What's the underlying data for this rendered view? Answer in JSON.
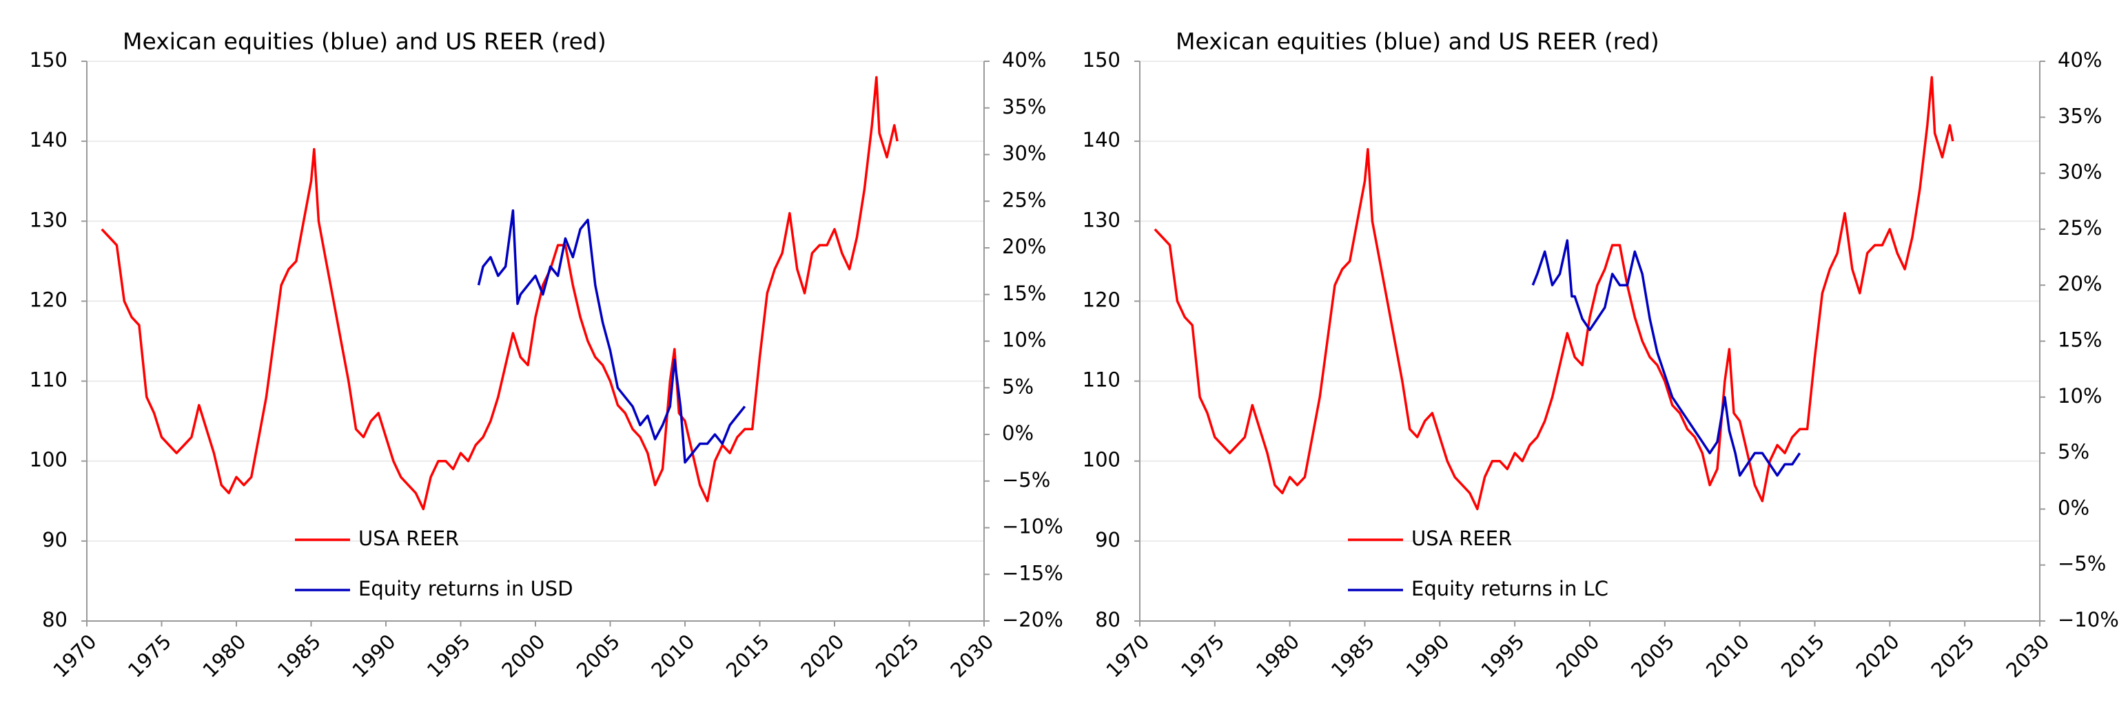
{
  "chart_data": [
    {
      "type": "line",
      "title": "Mexican equities (blue) and US REER (red)",
      "xlim": [
        1970,
        2030
      ],
      "xticks": [
        1970,
        1975,
        1980,
        1985,
        1990,
        1995,
        2000,
        2005,
        2010,
        2015,
        2020,
        2025,
        2030
      ],
      "ylim": [
        80,
        150
      ],
      "yticks": [
        80,
        90,
        100,
        110,
        120,
        130,
        140,
        150
      ],
      "y2lim": [
        -20,
        40
      ],
      "y2ticks": [
        {
          "value": -20,
          "label": "−20%"
        },
        {
          "value": -15,
          "label": "−15%"
        },
        {
          "value": -10,
          "label": "−10%"
        },
        {
          "value": -5,
          "label": "−5%"
        },
        {
          "value": 0,
          "label": "0%"
        },
        {
          "value": 5,
          "label": "5%"
        },
        {
          "value": 10,
          "label": "10%"
        },
        {
          "value": 15,
          "label": "15%"
        },
        {
          "value": 20,
          "label": "20%"
        },
        {
          "value": 25,
          "label": "25%"
        },
        {
          "value": 30,
          "label": "30%"
        },
        {
          "value": 35,
          "label": "35%"
        },
        {
          "value": 40,
          "label": "40%"
        }
      ],
      "grid": true,
      "series": [
        {
          "name": "USA REER",
          "color": "#ff0000",
          "x": [
            1971.0,
            1971.5,
            1972,
            1972.5,
            1973,
            1973.5,
            1974,
            1974.5,
            1975,
            1975.5,
            1976,
            1976.5,
            1977,
            1977.5,
            1978,
            1978.5,
            1979,
            1979.5,
            1980,
            1980.5,
            1981,
            1981.5,
            1982,
            1982.5,
            1983,
            1983.5,
            1984,
            1984.5,
            1985,
            1985.2,
            1985.5,
            1986,
            1986.5,
            1987,
            1987.5,
            1988,
            1988.5,
            1989,
            1989.5,
            1990,
            1990.5,
            1991,
            1991.5,
            1992,
            1992.5,
            1993,
            1993.5,
            1994,
            1994.5,
            1995,
            1995.5,
            1996,
            1996.5,
            1997,
            1997.5,
            1998,
            1998.5,
            1999,
            1999.5,
            2000,
            2000.5,
            2001,
            2001.5,
            2002,
            2002.5,
            2003,
            2003.5,
            2004,
            2004.5,
            2005,
            2005.5,
            2006,
            2006.5,
            2007,
            2007.5,
            2008,
            2008.5,
            2009,
            2009.3,
            2009.6,
            2010,
            2010.5,
            2011,
            2011.5,
            2012,
            2012.5,
            2013,
            2013.5,
            2014,
            2014.5,
            2015,
            2015.5,
            2016,
            2016.5,
            2017,
            2017.5,
            2018,
            2018.5,
            2019,
            2019.5,
            2020,
            2020.5,
            2021,
            2021.5,
            2022,
            2022.5,
            2022.8,
            2023,
            2023.5,
            2024,
            2024.2
          ],
          "values": [
            129,
            128,
            127,
            120,
            118,
            117,
            108,
            106,
            103,
            102,
            101,
            102,
            103,
            107,
            104,
            101,
            97,
            96,
            98,
            97,
            98,
            103,
            108,
            115,
            122,
            124,
            125,
            130,
            135,
            139,
            130,
            125,
            120,
            115,
            110,
            104,
            103,
            105,
            106,
            103,
            100,
            98,
            97,
            96,
            94,
            98,
            100,
            100,
            99,
            101,
            100,
            102,
            103,
            105,
            108,
            112,
            116,
            113,
            112,
            118,
            122,
            124,
            127,
            127,
            122,
            118,
            115,
            113,
            112,
            110,
            107,
            106,
            104,
            103,
            101,
            97,
            99,
            110,
            114,
            106,
            105,
            101,
            97,
            95,
            100,
            102,
            101,
            103,
            104,
            104,
            113,
            121,
            124,
            126,
            131,
            124,
            121,
            126,
            127,
            127,
            129,
            126,
            124,
            128,
            134,
            142,
            148,
            141,
            138,
            142,
            140
          ]
        },
        {
          "name": "Equity returns in USD",
          "color": "#0000c0",
          "axis": "y2",
          "x": [
            1996.2,
            1996.5,
            1997,
            1997.5,
            1998,
            1998.5,
            1998.8,
            1999,
            1999.5,
            2000,
            2000.5,
            2001,
            2001.5,
            2002,
            2002.5,
            2003,
            2003.5,
            2004,
            2004.5,
            2005,
            2005.5,
            2006,
            2006.5,
            2007,
            2007.5,
            2008,
            2008.5,
            2009,
            2009.3,
            2009.7,
            2010,
            2010.5,
            2011,
            2011.5,
            2012,
            2012.5,
            2013,
            2013.5,
            2014
          ],
          "values": [
            16,
            18,
            19,
            17,
            18,
            24,
            14,
            15,
            16,
            17,
            15,
            18,
            17,
            21,
            19,
            22,
            23,
            16,
            12,
            9,
            5,
            4,
            3,
            1,
            2,
            -0.5,
            1,
            3,
            8,
            3,
            -3,
            -2,
            -1,
            -1,
            0,
            -1,
            1,
            2,
            3
          ]
        }
      ]
    },
    {
      "type": "line",
      "title": "Mexican equities (blue) and US REER (red)",
      "xlim": [
        1970,
        2030
      ],
      "xticks": [
        1970,
        1975,
        1980,
        1985,
        1990,
        1995,
        2000,
        2005,
        2010,
        2015,
        2020,
        2025,
        2030
      ],
      "ylim": [
        80,
        150
      ],
      "yticks": [
        80,
        90,
        100,
        110,
        120,
        130,
        140,
        150
      ],
      "y2lim": [
        -10,
        40
      ],
      "y2ticks": [
        {
          "value": -10,
          "label": "−10%"
        },
        {
          "value": -5,
          "label": "−5%"
        },
        {
          "value": 0,
          "label": "0%"
        },
        {
          "value": 5,
          "label": "5%"
        },
        {
          "value": 10,
          "label": "10%"
        },
        {
          "value": 15,
          "label": "15%"
        },
        {
          "value": 20,
          "label": "20%"
        },
        {
          "value": 25,
          "label": "25%"
        },
        {
          "value": 30,
          "label": "30%"
        },
        {
          "value": 35,
          "label": "35%"
        },
        {
          "value": 40,
          "label": "40%"
        }
      ],
      "grid": true,
      "series": [
        {
          "name": "USA REER",
          "color": "#ff0000",
          "x": [
            1971.0,
            1971.5,
            1972,
            1972.5,
            1973,
            1973.5,
            1974,
            1974.5,
            1975,
            1975.5,
            1976,
            1976.5,
            1977,
            1977.5,
            1978,
            1978.5,
            1979,
            1979.5,
            1980,
            1980.5,
            1981,
            1981.5,
            1982,
            1982.5,
            1983,
            1983.5,
            1984,
            1984.5,
            1985,
            1985.2,
            1985.5,
            1986,
            1986.5,
            1987,
            1987.5,
            1988,
            1988.5,
            1989,
            1989.5,
            1990,
            1990.5,
            1991,
            1991.5,
            1992,
            1992.5,
            1993,
            1993.5,
            1994,
            1994.5,
            1995,
            1995.5,
            1996,
            1996.5,
            1997,
            1997.5,
            1998,
            1998.5,
            1999,
            1999.5,
            2000,
            2000.5,
            2001,
            2001.5,
            2002,
            2002.5,
            2003,
            2003.5,
            2004,
            2004.5,
            2005,
            2005.5,
            2006,
            2006.5,
            2007,
            2007.5,
            2008,
            2008.5,
            2009,
            2009.3,
            2009.6,
            2010,
            2010.5,
            2011,
            2011.5,
            2012,
            2012.5,
            2013,
            2013.5,
            2014,
            2014.5,
            2015,
            2015.5,
            2016,
            2016.5,
            2017,
            2017.5,
            2018,
            2018.5,
            2019,
            2019.5,
            2020,
            2020.5,
            2021,
            2021.5,
            2022,
            2022.5,
            2022.8,
            2023,
            2023.5,
            2024,
            2024.2
          ],
          "values": [
            129,
            128,
            127,
            120,
            118,
            117,
            108,
            106,
            103,
            102,
            101,
            102,
            103,
            107,
            104,
            101,
            97,
            96,
            98,
            97,
            98,
            103,
            108,
            115,
            122,
            124,
            125,
            130,
            135,
            139,
            130,
            125,
            120,
            115,
            110,
            104,
            103,
            105,
            106,
            103,
            100,
            98,
            97,
            96,
            94,
            98,
            100,
            100,
            99,
            101,
            100,
            102,
            103,
            105,
            108,
            112,
            116,
            113,
            112,
            118,
            122,
            124,
            127,
            127,
            122,
            118,
            115,
            113,
            112,
            110,
            107,
            106,
            104,
            103,
            101,
            97,
            99,
            110,
            114,
            106,
            105,
            101,
            97,
            95,
            100,
            102,
            101,
            103,
            104,
            104,
            113,
            121,
            124,
            126,
            131,
            124,
            121,
            126,
            127,
            127,
            129,
            126,
            124,
            128,
            134,
            142,
            148,
            141,
            138,
            142,
            140
          ]
        },
        {
          "name": "Equity returns in LC",
          "color": "#0000c0",
          "axis": "y2",
          "x": [
            1996.2,
            1996.5,
            1997,
            1997.5,
            1998,
            1998.5,
            1998.8,
            1999,
            1999.5,
            2000,
            2000.5,
            2001,
            2001.5,
            2002,
            2002.5,
            2003,
            2003.5,
            2004,
            2004.5,
            2005,
            2005.5,
            2006,
            2006.5,
            2007,
            2007.5,
            2008,
            2008.5,
            2009,
            2009.3,
            2009.7,
            2010,
            2010.5,
            2011,
            2011.5,
            2012,
            2012.5,
            2013,
            2013.5,
            2014
          ],
          "values": [
            20,
            21,
            23,
            20,
            21,
            24,
            19,
            19,
            17,
            16,
            17,
            18,
            21,
            20,
            20,
            23,
            21,
            17,
            14,
            12,
            10,
            9,
            8,
            7,
            6,
            5,
            6,
            10,
            7,
            5,
            3,
            4,
            5,
            5,
            4,
            3,
            4,
            4,
            5
          ]
        }
      ]
    }
  ]
}
